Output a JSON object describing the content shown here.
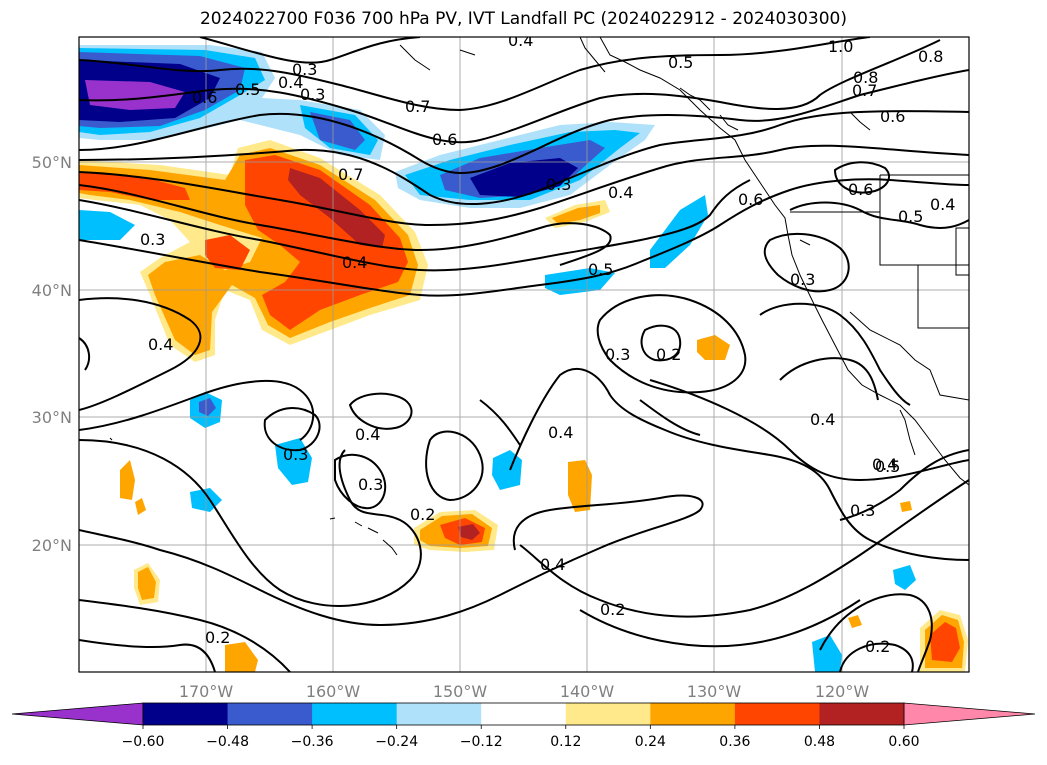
{
  "title": "2024022700 F036 700 hPa PV, IVT Landfall PC (2024022912 - 2024030300)",
  "lon_labels": [
    "170°W",
    "160°W",
    "150°W",
    "140°W",
    "130°W",
    "120°W"
  ],
  "lat_labels": [
    "50°N",
    "40°N",
    "30°N",
    "20°N"
  ],
  "contour_labels": [
    "0.4",
    "0.3",
    "0.5",
    "0.6",
    "0.4",
    "0.3",
    "0.5",
    "1.0",
    "0.8",
    "0.8",
    "0.7",
    "0.6",
    "0.7",
    "0.6",
    "0.7",
    "0.3",
    "0.4",
    "0.6",
    "0.6",
    "0.5",
    "0.4",
    "0.3",
    "0.4",
    "0.5",
    "0.3",
    "0.3",
    "0.2",
    "0.4",
    "0.4",
    "0.4",
    "0.3",
    "0.4",
    "0.3",
    "0.4",
    "0.5",
    "0.3",
    "0.4",
    "0.2",
    "0.2",
    "0.2",
    "0.2"
  ],
  "colorbar": {
    "ticks": [
      "−0.60",
      "−0.48",
      "−0.36",
      "−0.24",
      "−0.12",
      "0.12",
      "0.24",
      "0.36",
      "0.48",
      "0.60"
    ],
    "colors": [
      "#9932cc",
      "#00008b",
      "#3a5bcd",
      "#00bfff",
      "#afe1fa",
      "#ffffff",
      "#ffe98a",
      "#ffa500",
      "#ff4500",
      "#b22222",
      "#ff88aa"
    ]
  },
  "colors": {
    "positive_low": "#ffe98a",
    "positive_mid": "#ffa500",
    "positive_high": "#ff4500",
    "positive_top": "#b22222",
    "negative_low": "#afe1fa",
    "negative_mid": "#00bfff",
    "negative_high": "#3a5bcd",
    "negative_top": "#00008b",
    "negative_extreme": "#9932cc"
  }
}
